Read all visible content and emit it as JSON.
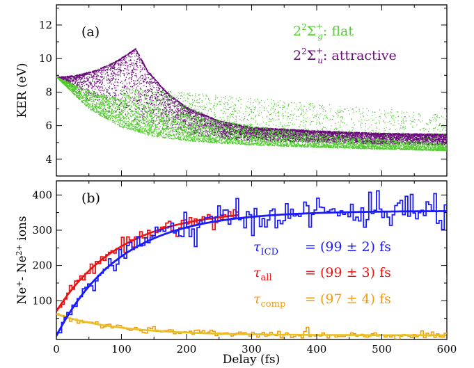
{
  "chart_data": [
    {
      "type": "scatter",
      "panel_label": "(a)",
      "ylabel": "KER (eV)",
      "xlim": [
        0,
        600
      ],
      "ylim": [
        3,
        13.2
      ],
      "yticks": [
        4,
        6,
        8,
        10,
        12
      ],
      "legend": {
        "placement": "top-right",
        "entries": [
          {
            "label": "2²Σg⁺: flat",
            "math_base": "2",
            "math_sup": "2",
            "sym": "Σ",
            "sub": "g",
            "sup": "+",
            "suffix": ": flat",
            "color": "#55cc33"
          },
          {
            "label": "2²Σu⁺: attractive",
            "math_base": "2",
            "math_sup": "2",
            "sym": "Σ",
            "sub": "u",
            "sup": "+",
            "suffix": ": attractive",
            "color": "#6a0a7a"
          }
        ]
      },
      "series": [
        {
          "name": "2²Σg⁺: flat",
          "color": "#55cc33",
          "upper_envelope": {
            "x": [
              0,
              50,
              100,
              150,
              200,
              250,
              300,
              400,
              500,
              600
            ],
            "y": [
              8.9,
              8.1,
              7.6,
              7.1,
              6.7,
              6.3,
              6.0,
              5.55,
              5.15,
              4.95
            ]
          },
          "lower_envelope": {
            "x": [
              0,
              50,
              100,
              150,
              200,
              250,
              300,
              400,
              500,
              600
            ],
            "y": [
              8.9,
              7.0,
              5.9,
              5.35,
              5.1,
              4.95,
              4.85,
              4.7,
              4.6,
              4.5
            ]
          },
          "sparse_region": {
            "x": [
              100,
              600
            ],
            "y_min": 5.0,
            "y_max": 8.3
          }
        },
        {
          "name": "2²Σu⁺: attractive",
          "color": "#6a0a7a",
          "upper_envelope": {
            "x": [
              0,
              30,
              60,
              90,
              110,
              122,
              140,
              170,
              200,
              250,
              300,
              400,
              500,
              600
            ],
            "y": [
              8.9,
              9.0,
              9.3,
              9.8,
              10.3,
              10.6,
              9.3,
              8.0,
              7.1,
              6.3,
              5.9,
              5.7,
              5.55,
              5.5
            ]
          },
          "lower_envelope": {
            "x": [
              0,
              50,
              100,
              150,
              200,
              250,
              300,
              400,
              500,
              600
            ],
            "y": [
              8.9,
              7.4,
              6.4,
              5.8,
              5.45,
              5.25,
              5.1,
              5.0,
              4.9,
              4.85
            ]
          }
        }
      ]
    },
    {
      "type": "line",
      "panel_label": "(b)",
      "ylabel": "Ne⁺- Ne²⁺ ions",
      "ylabel_parts": {
        "a": "Ne",
        "a_sup": "+",
        "mid": "- Ne",
        "b_sup": "2+",
        "tail": " ions"
      },
      "xlabel": "Delay (fs)",
      "xlim": [
        0,
        600
      ],
      "ylim": [
        -10,
        440
      ],
      "xticks": [
        0,
        100,
        200,
        300,
        400,
        500,
        600
      ],
      "yticks": [
        100,
        200,
        300,
        400
      ],
      "annotations": [
        {
          "tau": "τ",
          "sub": "ICD",
          "text": "= (99 ± 2) fs",
          "color": "#1a1aff"
        },
        {
          "tau": "τ",
          "sub": "all",
          "text": "= (99 ± 3) fs",
          "color": "#ee1111"
        },
        {
          "tau": "τ",
          "sub": "comp",
          "text": "= (97 ± 4) fs",
          "color": "#f29a10"
        }
      ],
      "series": [
        {
          "name": "ICD",
          "color": "#1a1aff",
          "model": "saturating",
          "amplitude": 355,
          "offset": 0,
          "tau_fs": 99,
          "noise": 18
        },
        {
          "name": "all",
          "color": "#ee1111",
          "model": "saturating",
          "amplitude": 290,
          "offset": 70,
          "tau_fs": 99,
          "noise": 10,
          "x_max": 280
        },
        {
          "name": "comp",
          "color": "#f29a10",
          "model": "decaying",
          "amplitude": 60,
          "offset": 2,
          "tau_fs": 97,
          "noise": 5
        }
      ]
    }
  ]
}
